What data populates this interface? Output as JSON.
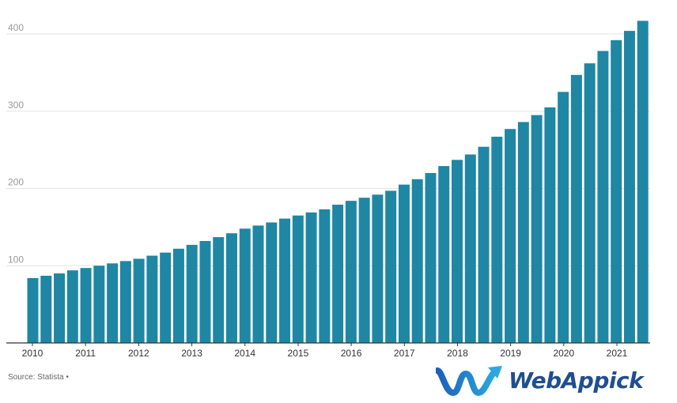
{
  "chart_data": {
    "type": "bar",
    "title": "",
    "xlabel": "",
    "ylabel": "",
    "ylim": [
      0,
      420
    ],
    "yticks": [
      100,
      200,
      300,
      400
    ],
    "grid": true,
    "bar_color": "#1f87a3",
    "x_tick_labels": [
      "2010",
      "2011",
      "2012",
      "2013",
      "2014",
      "2015",
      "2016",
      "2017",
      "2018",
      "2019",
      "2020",
      "2021"
    ],
    "values": [
      84,
      87,
      90,
      94,
      97,
      100,
      103,
      106,
      109,
      113,
      117,
      122,
      127,
      132,
      137,
      142,
      148,
      152,
      156,
      161,
      165,
      169,
      173,
      179,
      184,
      188,
      192,
      197,
      205,
      212,
      220,
      229,
      237,
      244,
      254,
      267,
      277,
      286,
      295,
      305,
      325,
      347,
      362,
      378,
      392,
      404,
      417
    ]
  },
  "source": "Source: Statista •",
  "logo": {
    "text": "WebAppick",
    "color": "#1f4f8f",
    "icon": "wave-arrow-logo-icon"
  }
}
